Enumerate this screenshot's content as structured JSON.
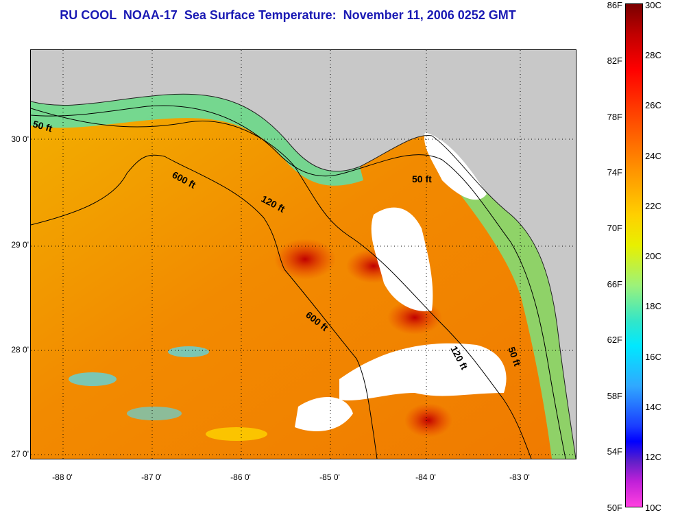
{
  "title": "RU COOL  NOAA-17  Sea Surface Temperature:  November 11, 2006 0252 GMT",
  "map": {
    "lat_labels": [
      "30 0'",
      "29 0'",
      "28 0'",
      "27 0'"
    ],
    "lon_labels": [
      "-88 0'",
      "-87 0'",
      "-86 0'",
      "-85 0'",
      "-84 0'",
      "-83 0'"
    ],
    "lat_range": [
      26.95,
      30.85
    ],
    "lon_range": [
      -88.35,
      -82.6
    ],
    "depth_labels": [
      "50 ft",
      "600 ft",
      "120 ft",
      "50 ft",
      "600 ft",
      "120 ft",
      "50 ft"
    ],
    "colors": {
      "land": "#c8c8c8",
      "cloud": "#ffffff",
      "grid": "#000000",
      "title": "#1a1ab4"
    }
  },
  "colorbar": {
    "fahrenheit": [
      "86F",
      "82F",
      "78F",
      "74F",
      "70F",
      "66F",
      "62F",
      "58F",
      "54F",
      "50F"
    ],
    "celsius": [
      "30C",
      "28C",
      "26C",
      "24C",
      "22C",
      "20C",
      "18C",
      "16C",
      "14C",
      "12C",
      "10C"
    ]
  }
}
